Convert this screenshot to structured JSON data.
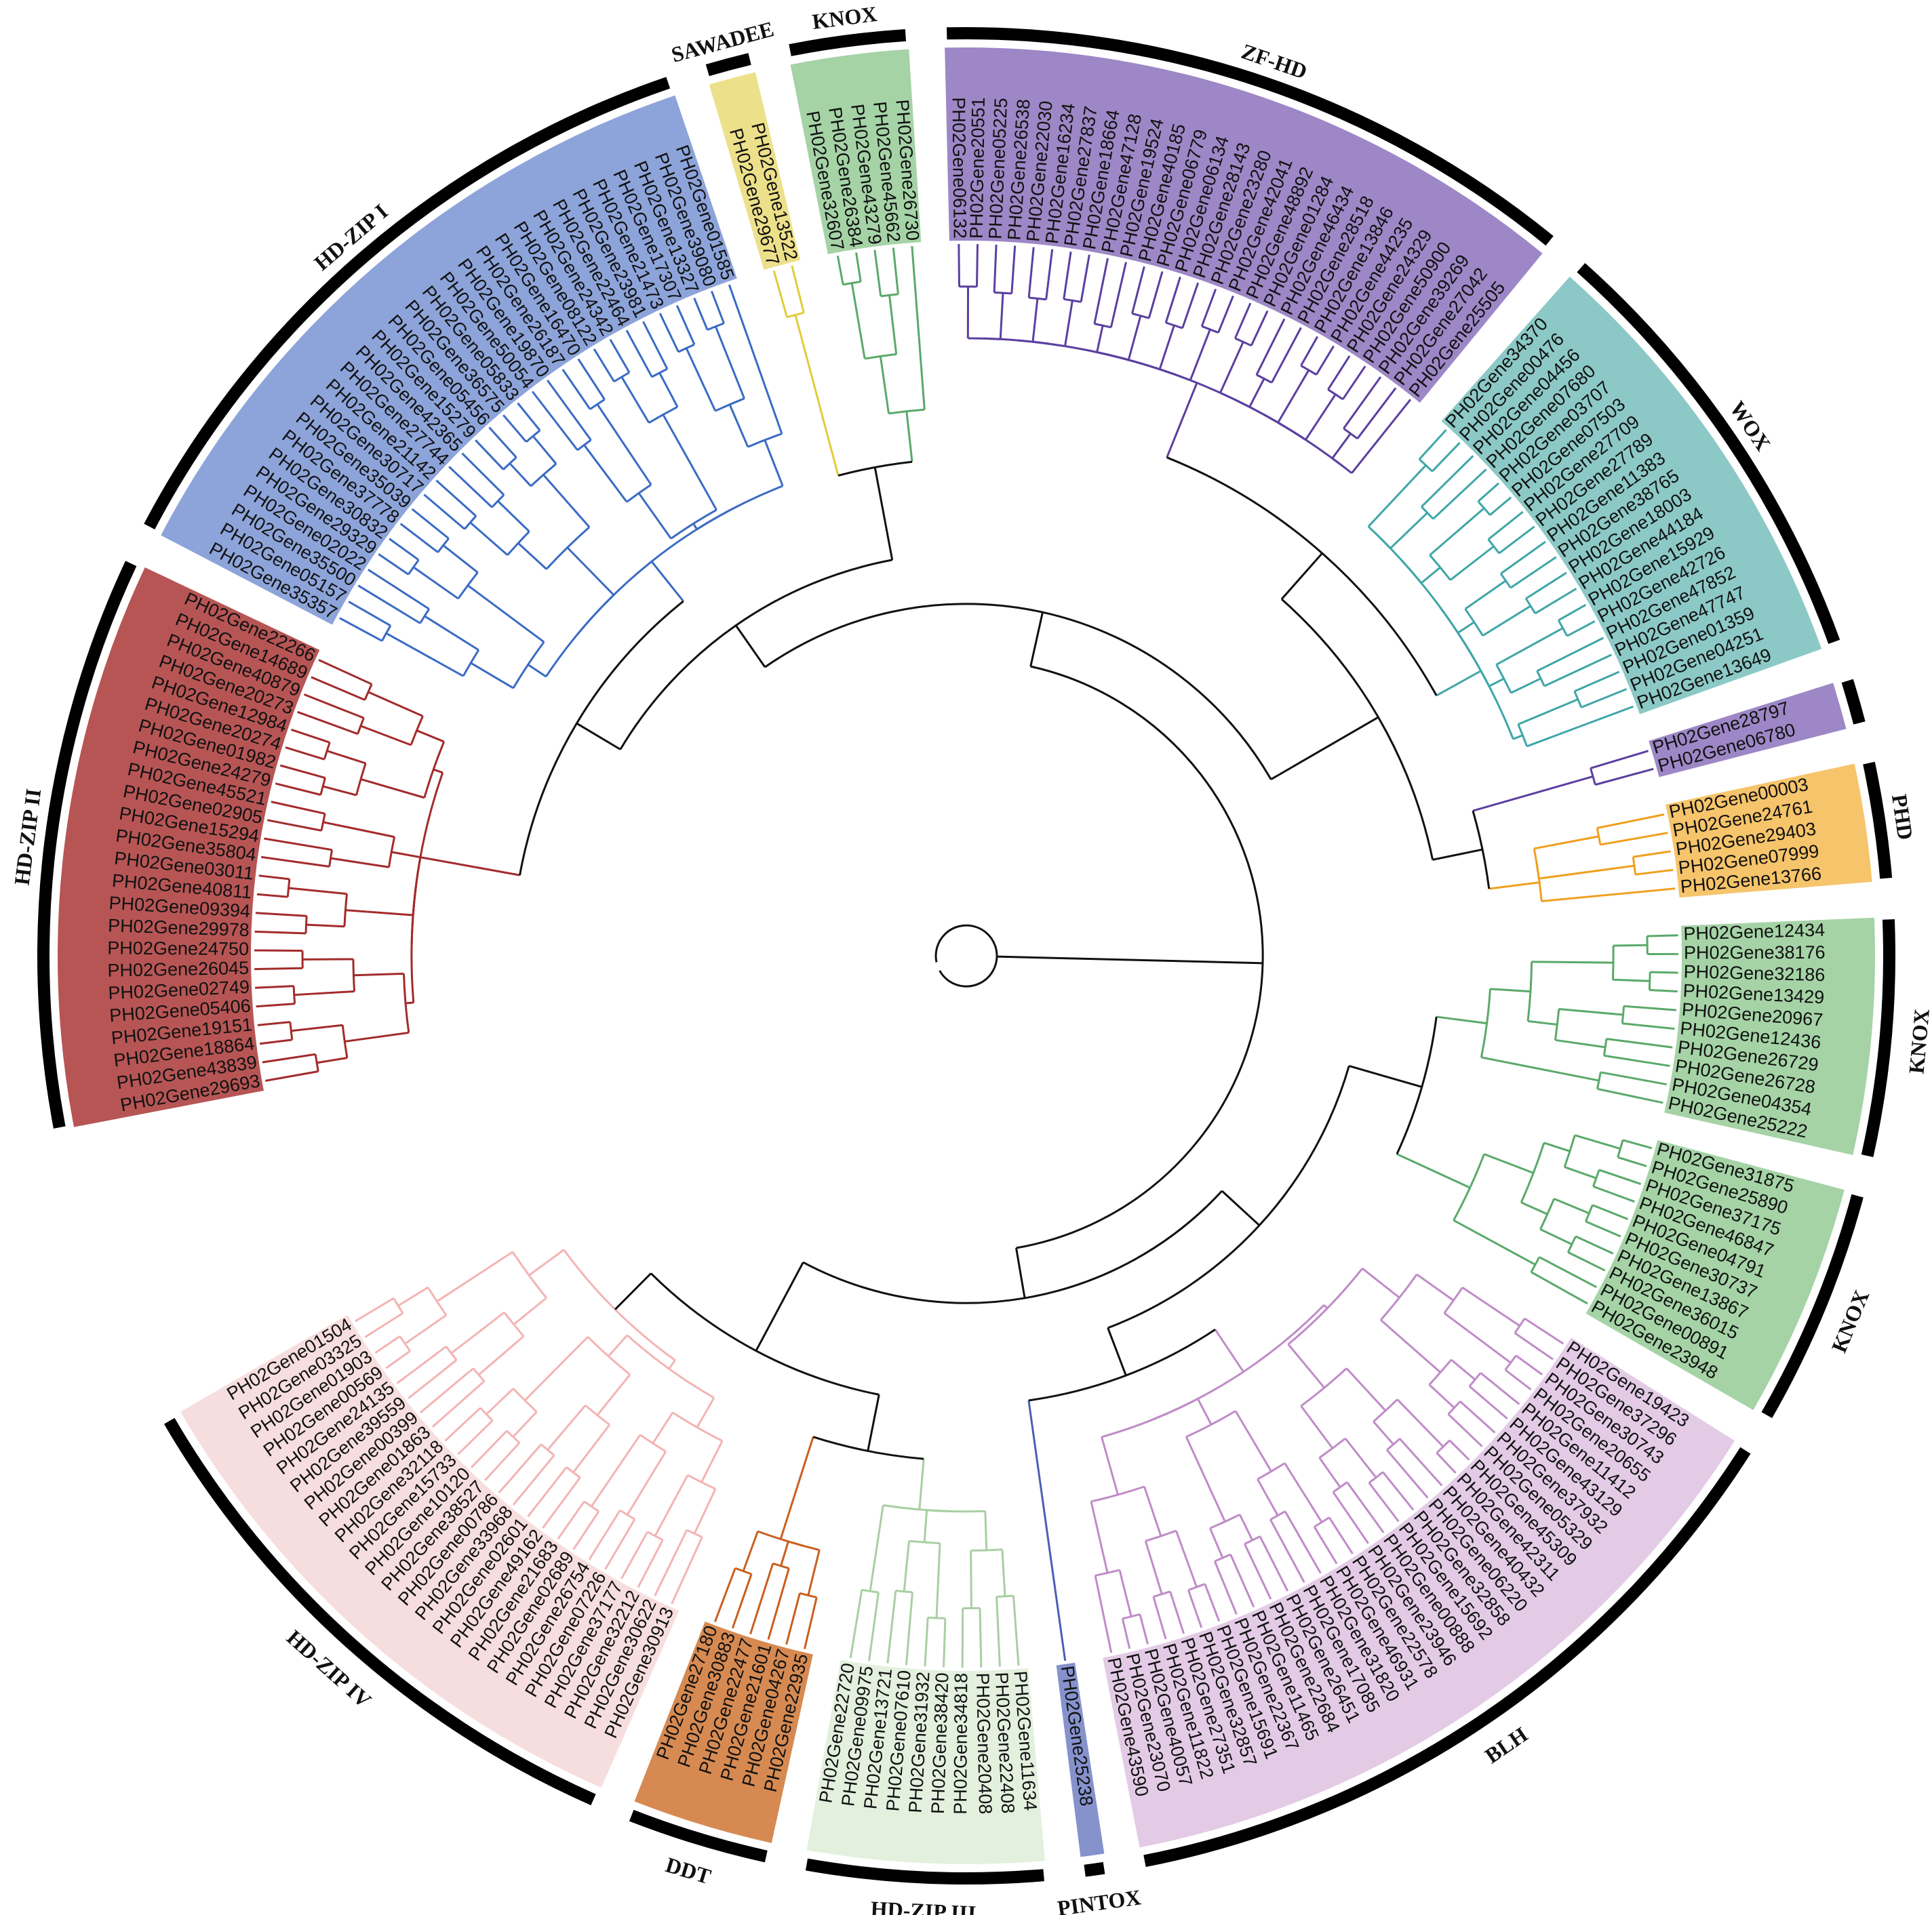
{
  "groups": [
    {
      "name": "HD-ZIP II",
      "color": "#a32b2b",
      "bg": "#b75555",
      "genes": [
        "PH02Gene29693",
        "PH02Gene43839",
        "PH02Gene18864",
        "PH02Gene19151",
        "PH02Gene05406",
        "PH02Gene02749",
        "PH02Gene26045",
        "PH02Gene24750",
        "PH02Gene29978",
        "PH02Gene09394",
        "PH02Gene40811",
        "PH02Gene03011",
        "PH02Gene35804",
        "PH02Gene15294",
        "PH02Gene02905",
        "PH02Gene45521",
        "PH02Gene24279",
        "PH02Gene01982",
        "PH02Gene20274",
        "PH02Gene12984",
        "PH02Gene20273",
        "PH02Gene40879",
        "PH02Gene14689",
        "PH02Gene22266"
      ]
    },
    {
      "name": "HD-ZIP I",
      "color": "#3a6bc4",
      "bg": "#8da4da",
      "genes": [
        "PH02Gene35357",
        "PH02Gene05157",
        "PH02Gene35500",
        "PH02Gene02022",
        "PH02Gene29329",
        "PH02Gene30832",
        "PH02Gene37778",
        "PH02Gene35039",
        "PH02Gene30717",
        "PH02Gene21142",
        "PH02Gene27744",
        "PH02Gene42365",
        "PH02Gene15279",
        "PH02Gene05456",
        "PH02Gene36575",
        "PH02Gene05833",
        "PH02Gene50054",
        "PH02Gene19870",
        "PH02Gene26187",
        "PH02Gene16470",
        "PH02Gene08122",
        "PH02Gene24342",
        "PH02Gene22464",
        "PH02Gene23981",
        "PH02Gene21473",
        "PH02Gene17307",
        "PH02Gene13327",
        "PH02Gene39080",
        "PH02Gene01585"
      ]
    },
    {
      "name": "SAWADEE",
      "color": "#e0cc3a",
      "bg": "#ede08a",
      "genes": [
        "PH02Gene29677",
        "PH02Gene13522"
      ]
    },
    {
      "name": "KNOX",
      "color": "#5aa96a",
      "bg": "#a5d3a6",
      "genes": [
        "PH02Gene32607",
        "PH02Gene26384",
        "PH02Gene43279",
        "PH02Gene45662",
        "PH02Gene26730"
      ]
    },
    {
      "name": "ZF-HD",
      "color": "#5b3fa0",
      "bg": "#9d87c6",
      "genes": [
        "PH02Gene06132",
        "PH02Gene20551",
        "PH02Gene05225",
        "PH02Gene26538",
        "PH02Gene22030",
        "PH02Gene16234",
        "PH02Gene27837",
        "PH02Gene18664",
        "PH02Gene47128",
        "PH02Gene19524",
        "PH02Gene40185",
        "PH02Gene06779",
        "PH02Gene06134",
        "PH02Gene28143",
        "PH02Gene23280",
        "PH02Gene42041",
        "PH02Gene48892",
        "PH02Gene01284",
        "PH02Gene46434",
        "PH02Gene28518",
        "PH02Gene13846",
        "PH02Gene44235",
        "PH02Gene24329",
        "PH02Gene50900",
        "PH02Gene39269",
        "PH02Gene27042",
        "PH02Gene25505"
      ]
    },
    {
      "name": "WOX",
      "color": "#3fa6a8",
      "bg": "#8cc9c6",
      "genes": [
        "PH02Gene34370",
        "PH02Gene00476",
        "PH02Gene04456",
        "PH02Gene07680",
        "PH02Gene03707",
        "PH02Gene07503",
        "PH02Gene27709",
        "PH02Gene27789",
        "PH02Gene11383",
        "PH02Gene38765",
        "PH02Gene18003",
        "PH02Gene44184",
        "PH02Gene15929",
        "PH02Gene42726",
        "PH02Gene47852",
        "PH02Gene47747",
        "PH02Gene01359",
        "PH02Gene04251",
        "PH02Gene13649"
      ]
    },
    {
      "name": "",
      "color": "#5b3fa0",
      "bg": "#9d87c6",
      "genes": [
        "PH02Gene28797",
        "PH02Gene06780"
      ]
    },
    {
      "name": "PHD",
      "color": "#f0a020",
      "bg": "#f6c46a",
      "genes": [
        "PH02Gene00003",
        "PH02Gene24761",
        "PH02Gene29403",
        "PH02Gene07999",
        "PH02Gene13766"
      ]
    },
    {
      "name": "KNOX",
      "color": "#5aa96a",
      "bg": "#a5d3a6",
      "genes": [
        "PH02Gene12434",
        "PH02Gene38176",
        "PH02Gene32186",
        "PH02Gene13429",
        "PH02Gene20967",
        "PH02Gene12436",
        "PH02Gene26729",
        "PH02Gene26728",
        "PH02Gene04354",
        "PH02Gene25222"
      ]
    },
    {
      "name": "KNOX",
      "color": "#5aa96a",
      "bg": "#a5d3a6",
      "genes": [
        "PH02Gene31875",
        "PH02Gene25890",
        "PH02Gene37175",
        "PH02Gene46847",
        "PH02Gene04791",
        "PH02Gene30737",
        "PH02Gene13867",
        "PH02Gene36015",
        "PH02Gene00891",
        "PH02Gene23948"
      ]
    },
    {
      "name": "BLH",
      "color": "#c08cc8",
      "bg": "#e3cbe6",
      "genes": [
        "PH02Gene19423",
        "PH02Gene37296",
        "PH02Gene30743",
        "PH02Gene20655",
        "PH02Gene11412",
        "PH02Gene43129",
        "PH02Gene37932",
        "PH02Gene05329",
        "PH02Gene45309",
        "PH02Gene42311",
        "PH02Gene40432",
        "PH02Gene06220",
        "PH02Gene32858",
        "PH02Gene15692",
        "PH02Gene00888",
        "PH02Gene23946",
        "PH02Gene22578",
        "PH02Gene46931",
        "PH02Gene31820",
        "PH02Gene17085",
        "PH02Gene26451",
        "PH02Gene22684",
        "PH02Gene11465",
        "PH02Gene22367",
        "PH02Gene15691",
        "PH02Gene32857",
        "PH02Gene27351",
        "PH02Gene11822",
        "PH02Gene40057",
        "PH02Gene23070",
        "PH02Gene43590"
      ]
    },
    {
      "name": "PINTOX",
      "color": "#4b5fb5",
      "bg": "#8592cc",
      "genes": [
        "PH02Gene25238"
      ]
    },
    {
      "name": "HD-ZIP III",
      "color": "#a9cfa3",
      "bg": "#e3f0de",
      "genes": [
        "PH02Gene11634",
        "PH02Gene22408",
        "PH02Gene20408",
        "PH02Gene34818",
        "PH02Gene38420",
        "PH02Gene31932",
        "PH02Gene07610",
        "PH02Gene13721",
        "PH02Gene09975",
        "PH02Gene22720"
      ]
    },
    {
      "name": "DDT",
      "color": "#c95f1e",
      "bg": "#d68a52",
      "genes": [
        "PH02Gene22935",
        "PH02Gene04267",
        "PH02Gene21601",
        "PH02Gene22477",
        "PH02Gene30883",
        "PH02Gene27180"
      ]
    },
    {
      "name": "HD-ZIP IV",
      "color": "#f3b4b4",
      "bg": "#f7dede",
      "genes": [
        "PH02Gene30913",
        "PH02Gene30622",
        "PH02Gene32212",
        "PH02Gene37177",
        "PH02Gene07226",
        "PH02Gene26754",
        "PH02Gene02689",
        "PH02Gene21683",
        "PH02Gene49162",
        "PH02Gene02601",
        "PH02Gene33968",
        "PH02Gene00786",
        "PH02Gene38527",
        "PH02Gene10120",
        "PH02Gene15733",
        "PH02Gene32118",
        "PH02Gene01863",
        "PH02Gene00399",
        "PH02Gene39559",
        "PH02Gene24135",
        "PH02Gene00569",
        "PH02Gene01903",
        "PH02Gene03325",
        "PH02Gene01504"
      ]
    }
  ]
}
